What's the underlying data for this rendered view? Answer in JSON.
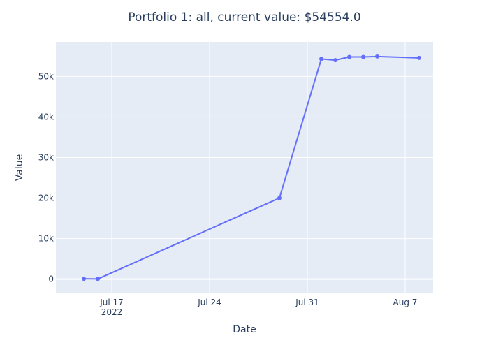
{
  "chart_data": {
    "type": "line",
    "title": "Portfolio 1: all, current value: $54554.0",
    "xlabel": "Date",
    "ylabel": "Value",
    "x_axis": {
      "type": "date",
      "range": [
        "2022-07-13",
        "2022-08-09"
      ],
      "ticks": [
        {
          "value": "2022-07-17",
          "label": "Jul 17",
          "sublabel": "2022"
        },
        {
          "value": "2022-07-24",
          "label": "Jul 24",
          "sublabel": ""
        },
        {
          "value": "2022-07-31",
          "label": "Jul 31",
          "sublabel": ""
        },
        {
          "value": "2022-08-07",
          "label": "Aug 7",
          "sublabel": ""
        }
      ]
    },
    "y_axis": {
      "range": [
        -3500,
        58500
      ],
      "ticks": [
        {
          "value": 0,
          "label": "0"
        },
        {
          "value": 10000,
          "label": "10k"
        },
        {
          "value": 20000,
          "label": "20k"
        },
        {
          "value": 30000,
          "label": "30k"
        },
        {
          "value": 40000,
          "label": "40k"
        },
        {
          "value": 50000,
          "label": "50k"
        }
      ]
    },
    "grid": true,
    "series": [
      {
        "color": "#636efa",
        "mode": "lines+markers",
        "points": [
          {
            "x": "2022-07-15",
            "y": 100
          },
          {
            "x": "2022-07-16",
            "y": 50
          },
          {
            "x": "2022-07-29",
            "y": 20000
          },
          {
            "x": "2022-08-01",
            "y": 54300
          },
          {
            "x": "2022-08-02",
            "y": 54000
          },
          {
            "x": "2022-08-03",
            "y": 54800
          },
          {
            "x": "2022-08-04",
            "y": 54800
          },
          {
            "x": "2022-08-05",
            "y": 54900
          },
          {
            "x": "2022-08-08",
            "y": 54554
          }
        ]
      }
    ]
  },
  "colors": {
    "plot_background": "#e5ecf6",
    "grid": "#ffffff",
    "text": "#2a3f5f",
    "line": "#636efa"
  }
}
